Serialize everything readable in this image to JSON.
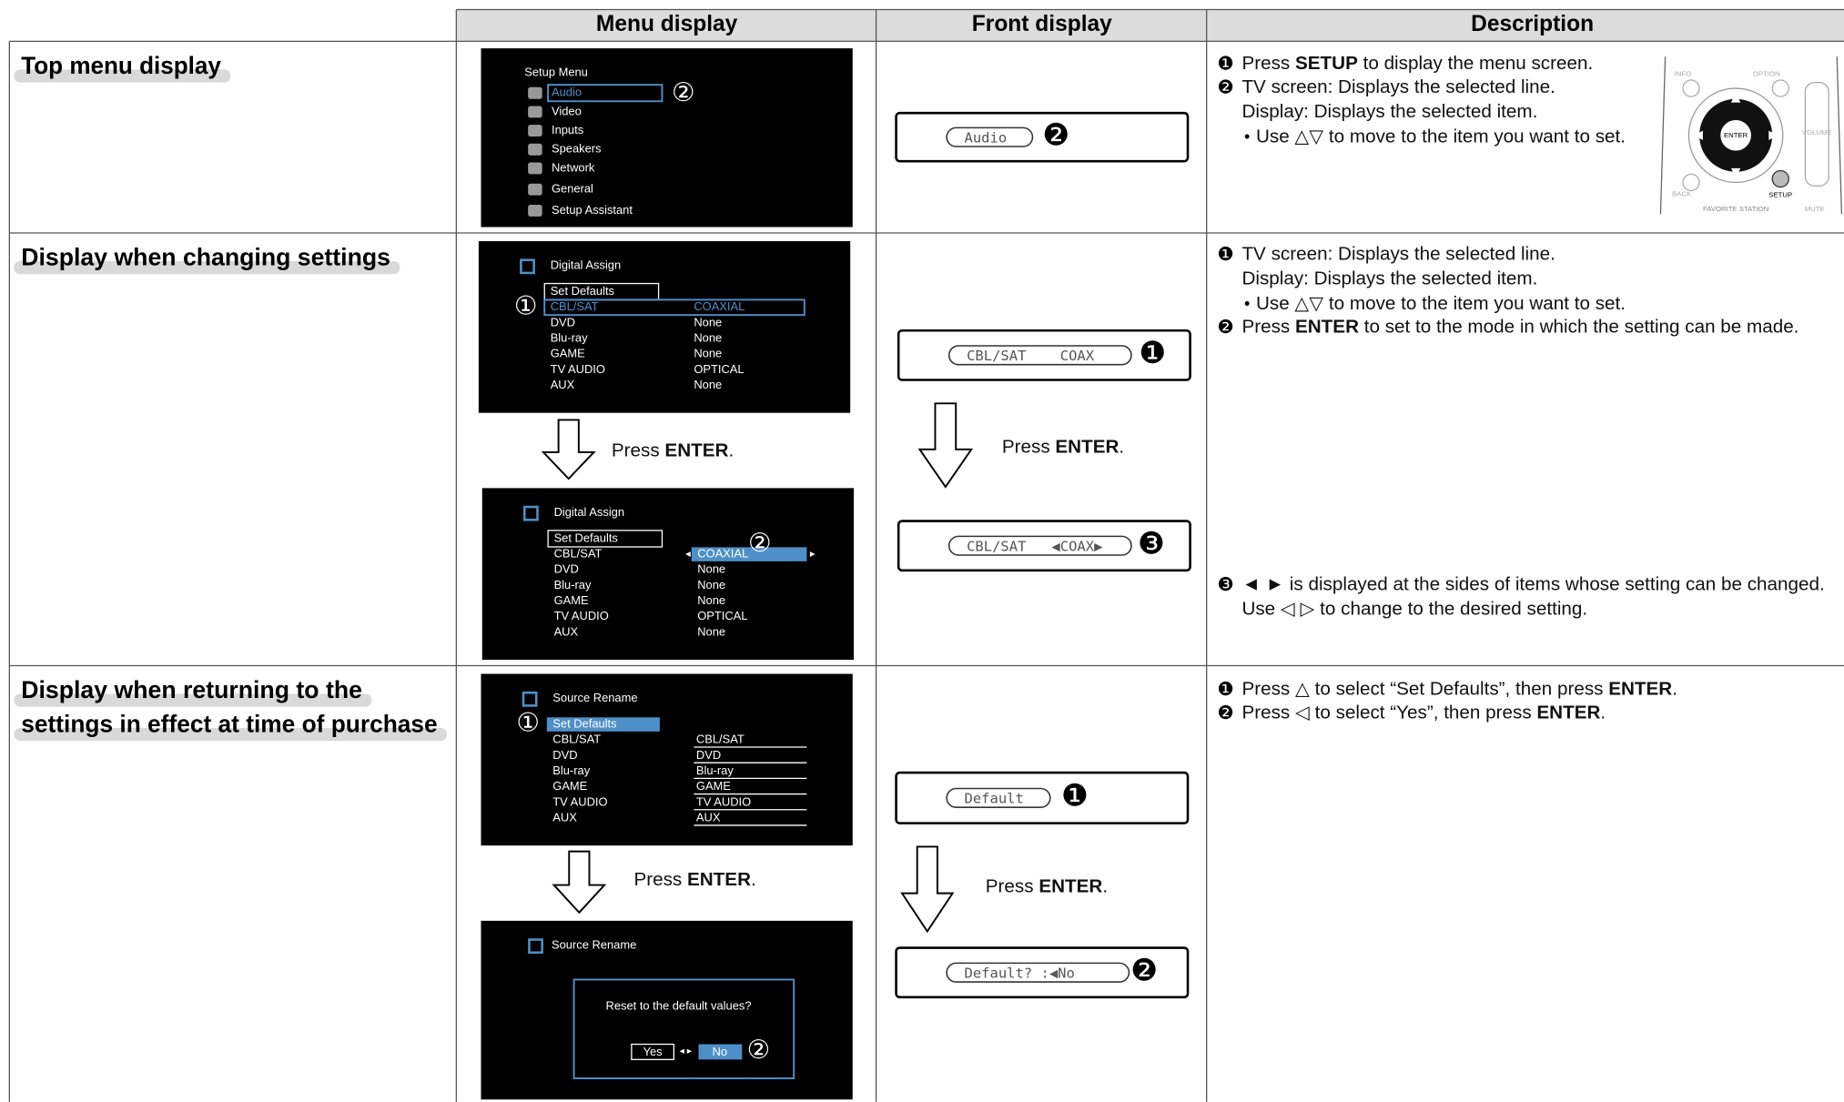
{
  "header": {
    "columns": [
      "Menu display",
      "Front display",
      "Description"
    ]
  },
  "rows": [
    {
      "title": [
        "Top menu display"
      ],
      "menu_display": [
        {
          "heading": "Setup Menu",
          "items": [
            "Audio",
            "Video",
            "Inputs",
            "Speakers",
            "Network",
            "General",
            "Setup Assistant"
          ],
          "callout": "②"
        }
      ],
      "front_display": [
        {
          "text": "Audio",
          "callout": "❷"
        }
      ],
      "description": [
        {
          "marker": "❶",
          "text": [
            "Press ",
            "SETUP",
            " to display the menu screen."
          ]
        },
        {
          "marker": "❷",
          "text": [
            "TV screen: Displays the selected line."
          ]
        },
        {
          "text": [
            "Display: Displays the selected item."
          ]
        },
        {
          "marker": "•",
          "text": [
            "Use △▽ to move to the item you want to set."
          ]
        }
      ],
      "remote_labels": [
        "INFO",
        "OPTION",
        "ENTER",
        "SETUP",
        "BACK",
        "VOLUME",
        "FAVORITE STATION",
        "MUTE"
      ]
    },
    {
      "title": [
        "Display when changing settings"
      ],
      "menu_display": [
        {
          "heading": "Digital Assign",
          "items": [
            {
              "label": "Set Defaults"
            },
            {
              "label": "CBL/SAT",
              "value": "COAXIAL"
            },
            {
              "label": "DVD",
              "value": "None"
            },
            {
              "label": "Blu-ray",
              "value": "None"
            },
            {
              "label": "GAME",
              "value": "None"
            },
            {
              "label": "TV AUDIO",
              "value": "OPTICAL"
            },
            {
              "label": "AUX",
              "value": "None"
            }
          ],
          "callout": "①"
        },
        {
          "heading": "Digital Assign",
          "items": [
            {
              "label": "Set Defaults"
            },
            {
              "label": "CBL/SAT",
              "value": "COAXIAL"
            },
            {
              "label": "DVD",
              "value": "None"
            },
            {
              "label": "Blu-ray",
              "value": "None"
            },
            {
              "label": "GAME",
              "value": "None"
            },
            {
              "label": "TV AUDIO",
              "value": "OPTICAL"
            },
            {
              "label": "AUX",
              "value": "None"
            }
          ],
          "arrows": [
            "◂",
            "▸"
          ],
          "callout": "②"
        }
      ],
      "menu_step": [
        "Press ",
        "ENTER",
        "."
      ],
      "front_display": [
        {
          "text": "CBL/SAT    COAX",
          "callout": "❶"
        },
        {
          "text": "CBL/SAT   ◀COAX▶",
          "callout": "❸"
        }
      ],
      "front_step": [
        "Press ",
        "ENTER",
        "."
      ],
      "description": [
        {
          "marker": "❶",
          "text": [
            "TV screen: Displays the selected line."
          ]
        },
        {
          "text": [
            "Display: Displays the selected item."
          ]
        },
        {
          "marker": "•",
          "text": [
            "Use △▽ to move to the item you want to set."
          ]
        },
        {
          "marker": "❷",
          "text": [
            "Press ",
            "ENTER",
            " to set to the mode in which the setting can be made."
          ]
        },
        {
          "marker": "❸",
          "text": [
            "◄ ► is displayed at the sides of items whose setting can be changed."
          ]
        },
        {
          "text": [
            "Use ◁ ▷ to change to the desired setting."
          ]
        }
      ]
    },
    {
      "title": [
        "Display when returning to the",
        "settings in effect at time of purchase"
      ],
      "menu_display": [
        {
          "heading": "Source Rename",
          "items": [
            {
              "label": "Set Defaults"
            },
            {
              "label": "CBL/SAT",
              "value": "CBL/SAT"
            },
            {
              "label": "DVD",
              "value": "DVD"
            },
            {
              "label": "Blu-ray",
              "value": "Blu-ray"
            },
            {
              "label": "GAME",
              "value": "GAME"
            },
            {
              "label": "TV AUDIO",
              "value": "TV AUDIO"
            },
            {
              "label": "AUX",
              "value": "AUX"
            }
          ],
          "callout": "①"
        },
        {
          "heading": "Source Rename",
          "dialog": "Reset to the default values?",
          "buttons": [
            "Yes",
            "No"
          ],
          "arrows": "◂ ▸",
          "callout": "②"
        }
      ],
      "menu_step": [
        "Press ",
        "ENTER",
        "."
      ],
      "front_display": [
        {
          "text": "Default",
          "callout": "❶"
        },
        {
          "text": "Default? :◀No",
          "callout": "❷"
        }
      ],
      "front_step": [
        "Press ",
        "ENTER",
        "."
      ],
      "description": [
        {
          "marker": "❶",
          "text": [
            "Press △ to select “Set Defaults”, then press ",
            "ENTER",
            "."
          ]
        },
        {
          "marker": "❷",
          "text": [
            "Press ◁ to select “Yes”, then press ",
            "ENTER",
            "."
          ]
        }
      ]
    }
  ]
}
